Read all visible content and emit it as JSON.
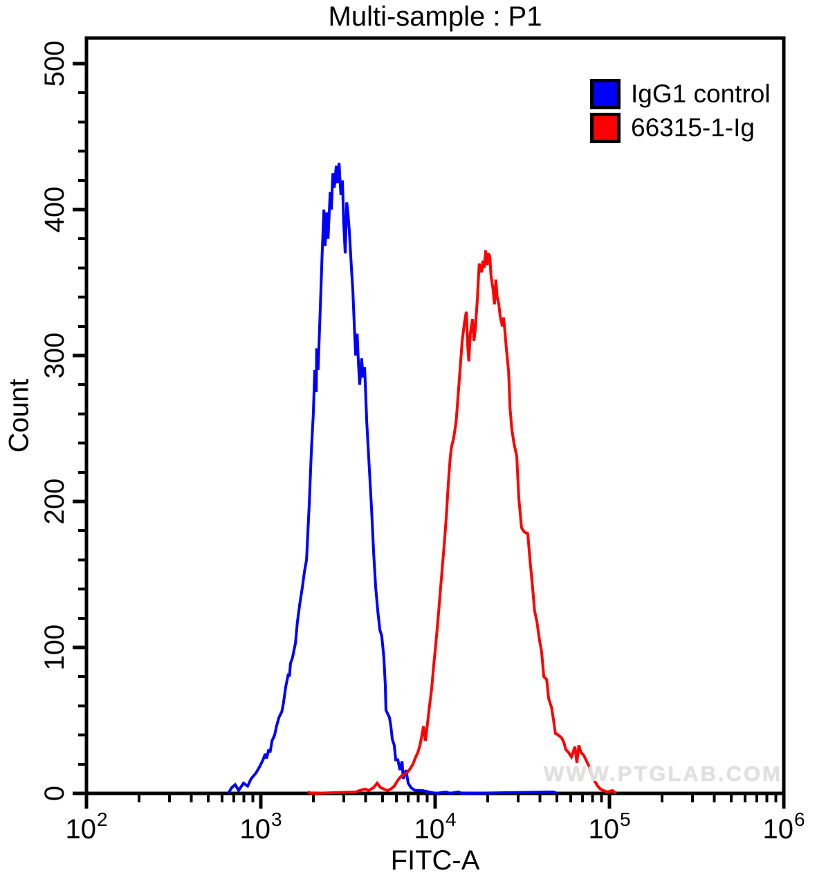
{
  "title": "Multi-sample : P1",
  "watermark": "WWW.PTGLAB.COM",
  "colors": {
    "control_series": "#0000ff",
    "antibody_series": "#ff0000",
    "axis": "#000000",
    "background": "#ffffff",
    "watermark": "#e0e0e0"
  },
  "legend": [
    {
      "label": "IgG1 control",
      "color": "#0000ff"
    },
    {
      "label": "66315-1-Ig",
      "color": "#ff0000"
    }
  ],
  "chart_data": {
    "type": "line",
    "subtype": "flow-cytometry-histogram",
    "title": "Multi-sample : P1",
    "xlabel": "FITC-A",
    "ylabel": "Count",
    "x_scale": "log10",
    "xlim": [
      100,
      1000000
    ],
    "ylim": [
      0,
      517
    ],
    "grid": false,
    "legend_position": "top-right-inside",
    "y_major_ticks": [
      0,
      100,
      200,
      300,
      400,
      500
    ],
    "y_minor_step": 20,
    "x_major_ticks": [
      {
        "value": 100,
        "base": "10",
        "exp": "2"
      },
      {
        "value": 1000,
        "base": "10",
        "exp": "3"
      },
      {
        "value": 10000,
        "base": "10",
        "exp": "4"
      },
      {
        "value": 100000,
        "base": "10",
        "exp": "5"
      },
      {
        "value": 1000000,
        "base": "10",
        "exp": "6"
      }
    ],
    "x_minor_multipliers": [
      2,
      3,
      4,
      5,
      6,
      7,
      8,
      9
    ],
    "series": [
      {
        "name": "IgG1 control",
        "color": "#0000ff",
        "points": [
          [
            650,
            0
          ],
          [
            681,
            4
          ],
          [
            713,
            6
          ],
          [
            746,
            2
          ],
          [
            796,
            7
          ],
          [
            841,
            5
          ],
          [
            879,
            10
          ],
          [
            938,
            14
          ],
          [
            982,
            18
          ],
          [
            1030,
            23
          ],
          [
            1060,
            27
          ],
          [
            1080,
            24
          ],
          [
            1110,
            30
          ],
          [
            1130,
            28
          ],
          [
            1160,
            36
          ],
          [
            1200,
            40
          ],
          [
            1230,
            46
          ],
          [
            1270,
            52
          ],
          [
            1320,
            56
          ],
          [
            1350,
            62
          ],
          [
            1390,
            73
          ],
          [
            1440,
            82
          ],
          [
            1460,
            80
          ],
          [
            1480,
            89
          ],
          [
            1520,
            93
          ],
          [
            1580,
            103
          ],
          [
            1620,
            117
          ],
          [
            1670,
            129
          ],
          [
            1730,
            141
          ],
          [
            1780,
            152
          ],
          [
            1830,
            160
          ],
          [
            1900,
            200
          ],
          [
            1950,
            235
          ],
          [
            2000,
            260
          ],
          [
            2040,
            290
          ],
          [
            2080,
            275
          ],
          [
            2090,
            305
          ],
          [
            2130,
            290
          ],
          [
            2190,
            330
          ],
          [
            2250,
            370
          ],
          [
            2300,
            400
          ],
          [
            2340,
            375
          ],
          [
            2380,
            398
          ],
          [
            2430,
            380
          ],
          [
            2500,
            412
          ],
          [
            2540,
            400
          ],
          [
            2590,
            425
          ],
          [
            2640,
            415
          ],
          [
            2710,
            430
          ],
          [
            2750,
            418
          ],
          [
            2810,
            432
          ],
          [
            2880,
            410
          ],
          [
            2940,
            420
          ],
          [
            2990,
            390
          ],
          [
            3050,
            370
          ],
          [
            3110,
            405
          ],
          [
            3160,
            398
          ],
          [
            3220,
            385
          ],
          [
            3310,
            360
          ],
          [
            3370,
            345
          ],
          [
            3440,
            320
          ],
          [
            3500,
            300
          ],
          [
            3570,
            315
          ],
          [
            3630,
            295
          ],
          [
            3690,
            280
          ],
          [
            3790,
            298
          ],
          [
            3860,
            285
          ],
          [
            3940,
            292
          ],
          [
            4050,
            255
          ],
          [
            4160,
            230
          ],
          [
            4320,
            195
          ],
          [
            4440,
            165
          ],
          [
            4560,
            141
          ],
          [
            4690,
            125
          ],
          [
            4820,
            112
          ],
          [
            4940,
            108
          ],
          [
            5080,
            93
          ],
          [
            5180,
            74
          ],
          [
            5220,
            57
          ],
          [
            5470,
            52
          ],
          [
            5570,
            46
          ],
          [
            5680,
            37
          ],
          [
            5830,
            33
          ],
          [
            5940,
            23
          ],
          [
            6110,
            23
          ],
          [
            6280,
            16
          ],
          [
            6460,
            22
          ],
          [
            6560,
            10
          ],
          [
            6810,
            16
          ],
          [
            7000,
            7
          ],
          [
            7260,
            4
          ],
          [
            7670,
            2
          ],
          [
            8410,
            2
          ],
          [
            9200,
            1
          ],
          [
            10100,
            0
          ],
          [
            11600,
            1
          ],
          [
            12100,
            0
          ],
          [
            13600,
            1
          ],
          [
            14300,
            0
          ],
          [
            47800,
            1
          ],
          [
            49900,
            0
          ]
        ]
      },
      {
        "name": "66315-1-Ig",
        "color": "#ff0000",
        "points": [
          [
            1860,
            1
          ],
          [
            1950,
            0
          ],
          [
            3530,
            1
          ],
          [
            3690,
            2
          ],
          [
            3970,
            3
          ],
          [
            4160,
            2
          ],
          [
            4440,
            4
          ],
          [
            4650,
            7
          ],
          [
            4860,
            4
          ],
          [
            5080,
            3
          ],
          [
            5320,
            2
          ],
          [
            5570,
            3
          ],
          [
            5830,
            5
          ],
          [
            6110,
            9
          ],
          [
            6400,
            12
          ],
          [
            6680,
            13
          ],
          [
            7000,
            15
          ],
          [
            7190,
            17
          ],
          [
            7460,
            20
          ],
          [
            7670,
            24
          ],
          [
            7960,
            28
          ],
          [
            8190,
            33
          ],
          [
            8410,
            40
          ],
          [
            8570,
            46
          ],
          [
            8790,
            36
          ],
          [
            9040,
            48
          ],
          [
            9290,
            60
          ],
          [
            9550,
            72
          ],
          [
            9820,
            88
          ],
          [
            10100,
            103
          ],
          [
            10400,
            120
          ],
          [
            10700,
            138
          ],
          [
            11000,
            155
          ],
          [
            11300,
            172
          ],
          [
            11600,
            190
          ],
          [
            11900,
            212
          ],
          [
            12200,
            230
          ],
          [
            12400,
            237
          ],
          [
            12800,
            244
          ],
          [
            13200,
            255
          ],
          [
            13500,
            270
          ],
          [
            13900,
            290
          ],
          [
            14300,
            310
          ],
          [
            14700,
            322
          ],
          [
            15100,
            330
          ],
          [
            15400,
            305
          ],
          [
            15600,
            296
          ],
          [
            15900,
            315
          ],
          [
            16400,
            325
          ],
          [
            16700,
            310
          ],
          [
            17000,
            318
          ],
          [
            17500,
            340
          ],
          [
            17900,
            363
          ],
          [
            18500,
            357
          ],
          [
            18800,
            365
          ],
          [
            19100,
            360
          ],
          [
            19500,
            372
          ],
          [
            19900,
            362
          ],
          [
            20200,
            370
          ],
          [
            20600,
            368
          ],
          [
            20900,
            355
          ],
          [
            21500,
            345
          ],
          [
            21900,
            335
          ],
          [
            22300,
            352
          ],
          [
            22700,
            340
          ],
          [
            23200,
            335
          ],
          [
            23600,
            327
          ],
          [
            24300,
            320
          ],
          [
            24700,
            326
          ],
          [
            25200,
            315
          ],
          [
            25600,
            305
          ],
          [
            26400,
            289
          ],
          [
            26900,
            264
          ],
          [
            27500,
            250
          ],
          [
            28300,
            240
          ],
          [
            29400,
            231
          ],
          [
            30200,
            202
          ],
          [
            31300,
            182
          ],
          [
            32500,
            179
          ],
          [
            34000,
            178
          ],
          [
            35000,
            160
          ],
          [
            36300,
            140
          ],
          [
            37200,
            125
          ],
          [
            38300,
            118
          ],
          [
            39700,
            105
          ],
          [
            40800,
            97
          ],
          [
            42000,
            80
          ],
          [
            43600,
            78
          ],
          [
            44800,
            65
          ],
          [
            46500,
            59
          ],
          [
            47800,
            50
          ],
          [
            49000,
            41
          ],
          [
            50800,
            40
          ],
          [
            53200,
            38
          ],
          [
            54700,
            35
          ],
          [
            56200,
            30
          ],
          [
            58300,
            28
          ],
          [
            60500,
            25
          ],
          [
            63400,
            32
          ],
          [
            65000,
            21
          ],
          [
            66800,
            33
          ],
          [
            68700,
            28
          ],
          [
            71300,
            26
          ],
          [
            74000,
            22
          ],
          [
            76700,
            18
          ],
          [
            79600,
            12
          ],
          [
            82600,
            8
          ],
          [
            85700,
            5
          ],
          [
            88700,
            3
          ],
          [
            92000,
            2
          ],
          [
            97300,
            1
          ],
          [
            104000,
            2
          ],
          [
            109000,
            0
          ]
        ]
      }
    ]
  }
}
